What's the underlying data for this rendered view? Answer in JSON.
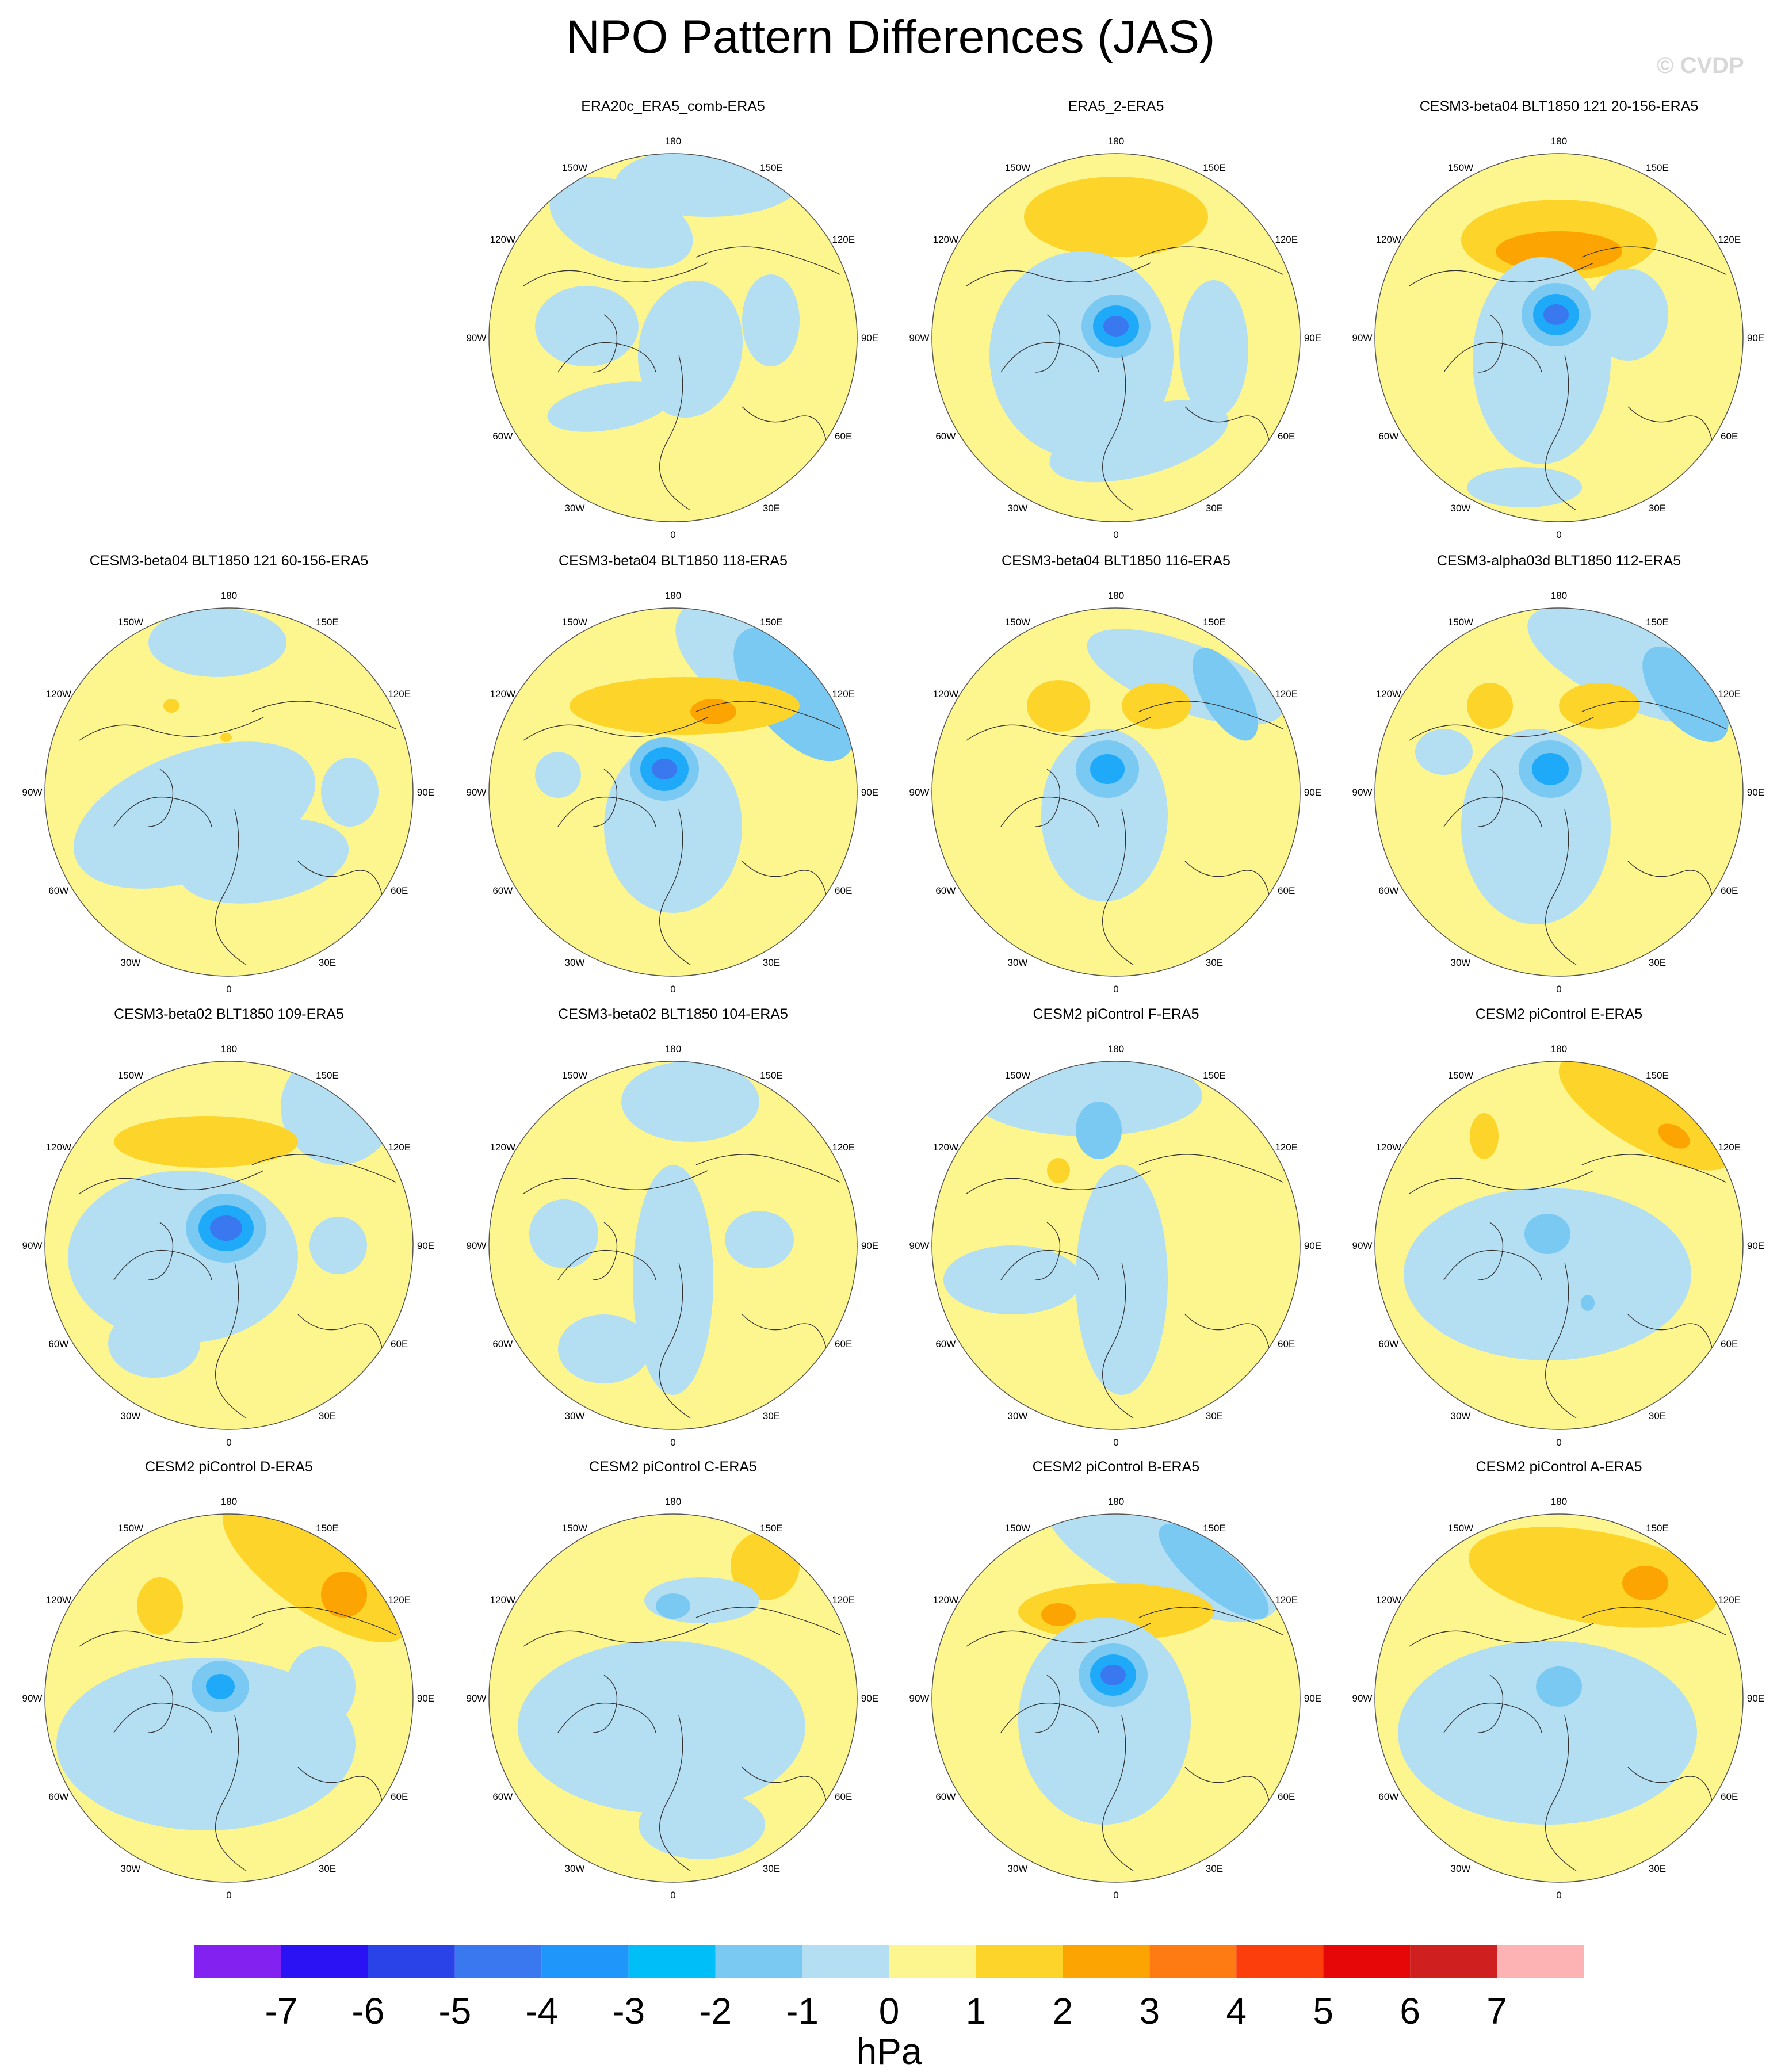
{
  "title": "NPO Pattern Differences (JAS)",
  "watermark": "© CVDP",
  "colors": {
    "neg1": "#b4def2",
    "neg2": "#79c9f3",
    "neg3": "#1eaaf8",
    "neg4": "#3a78f0",
    "neg5": "#2a43e8",
    "pos1": "#fdf68f",
    "pos2": "#fdd42a",
    "pos3": "#fca502",
    "pos4": "#fd7b12",
    "ocean_edge": "#555555",
    "coast": "#333333"
  },
  "longitude_labels": {
    "top": "180",
    "bottom": "0",
    "w150": "150W",
    "w120": "120W",
    "w90": "90W",
    "w60": "60W",
    "w30": "30W",
    "e150": "150E",
    "e120": "120E",
    "e90": "90E",
    "e60": "60E",
    "e30": "30E"
  },
  "panels": [
    {
      "title": "ERA20c_ERA5_comb-ERA5",
      "pattern": "A"
    },
    {
      "title": "ERA5_2-ERA5",
      "pattern": "B"
    },
    {
      "title": "CESM3-beta04 BLT1850 121 20-156-ERA5",
      "pattern": "C"
    },
    {
      "title": "CESM3-beta04 BLT1850 121 60-156-ERA5",
      "pattern": "D"
    },
    {
      "title": "CESM3-beta04 BLT1850 118-ERA5",
      "pattern": "E"
    },
    {
      "title": "CESM3-beta04 BLT1850 116-ERA5",
      "pattern": "F"
    },
    {
      "title": "CESM3-alpha03d BLT1850 112-ERA5",
      "pattern": "G"
    },
    {
      "title": "CESM3-beta02 BLT1850 109-ERA5",
      "pattern": "H"
    },
    {
      "title": "CESM3-beta02 BLT1850 104-ERA5",
      "pattern": "I"
    },
    {
      "title": "CESM2 piControl F-ERA5",
      "pattern": "J"
    },
    {
      "title": "CESM2 piControl E-ERA5",
      "pattern": "K"
    },
    {
      "title": "CESM2 piControl D-ERA5",
      "pattern": "L"
    },
    {
      "title": "CESM2 piControl C-ERA5",
      "pattern": "M"
    },
    {
      "title": "CESM2 piControl B-ERA5",
      "pattern": "N"
    },
    {
      "title": "CESM2 piControl A-ERA5",
      "pattern": "O"
    }
  ],
  "colorbar": {
    "colors": [
      "#8221f0",
      "#2a12f5",
      "#2a43e8",
      "#3a78f0",
      "#1e96fa",
      "#00bff8",
      "#79c9f3",
      "#b4def2",
      "#fdf68f",
      "#fdd42a",
      "#fca502",
      "#fd7b12",
      "#fc3d0c",
      "#e60808",
      "#cf1f1f",
      "#fdb3b3"
    ],
    "ticks": [
      "-7",
      "-6",
      "-5",
      "-4",
      "-3",
      "-2",
      "-1",
      "0",
      "1",
      "2",
      "3",
      "4",
      "5",
      "6",
      "7"
    ],
    "unit": "hPa"
  }
}
